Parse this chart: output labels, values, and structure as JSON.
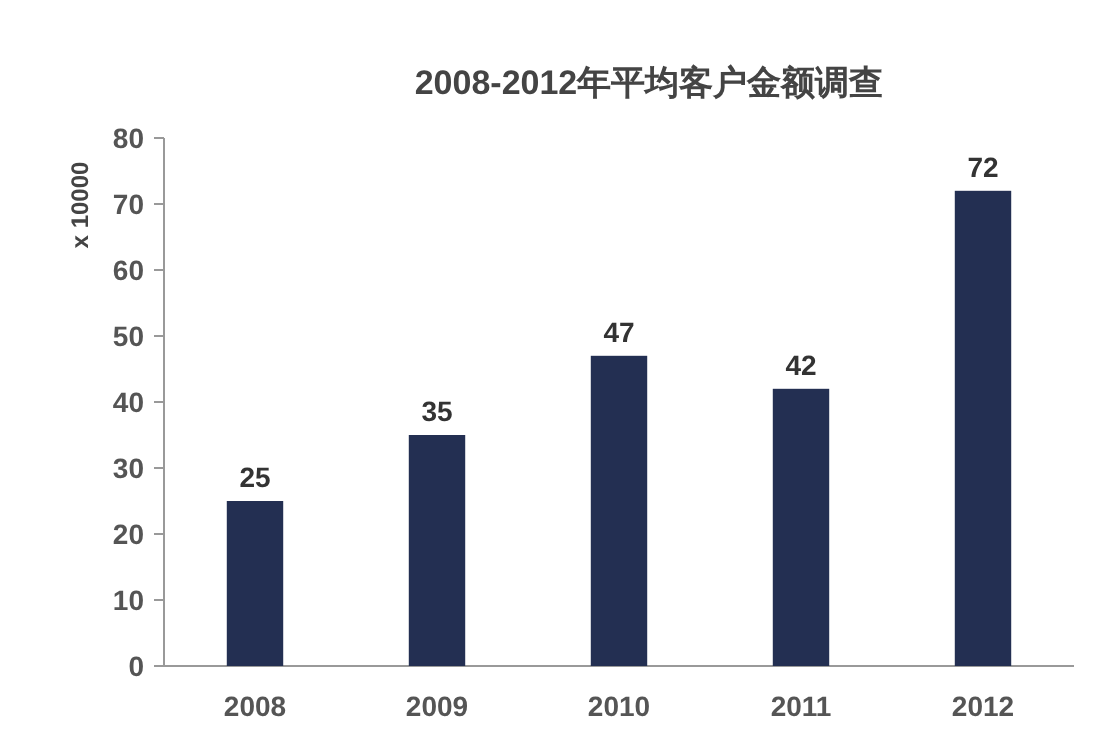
{
  "chart_data": {
    "type": "bar",
    "title": "2008-2012年平均客户金额调查",
    "ylabel": "x 10000",
    "categories": [
      "2008",
      "2009",
      "2010",
      "2011",
      "2012"
    ],
    "values": [
      25,
      35,
      47,
      42,
      72
    ],
    "color": "#232f52",
    "ylim": [
      0,
      80
    ],
    "yticks": [
      0,
      10,
      20,
      30,
      40,
      50,
      60,
      70,
      80
    ],
    "data_labels": true,
    "grid": false
  }
}
